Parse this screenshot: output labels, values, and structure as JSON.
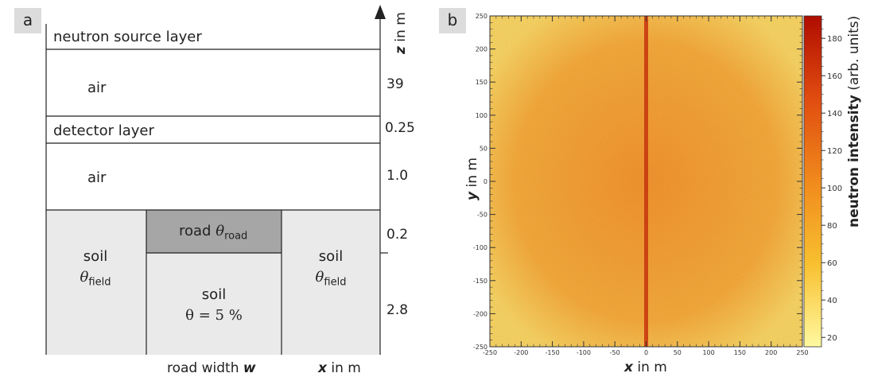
{
  "panel_a": {
    "tag": "a",
    "axis": {
      "var": "z",
      "unit": "in m"
    },
    "layers": {
      "source": "neutron source layer",
      "air_upper": "air",
      "detector": "detector layer",
      "air_lower": "air"
    },
    "thickness": {
      "air_upper": "39",
      "detector": "0.25",
      "air_lower": "1.0",
      "road": "0.2",
      "soil": "2.8"
    },
    "road": {
      "word": "road",
      "theta": "θ",
      "sub": "road"
    },
    "soil_left": {
      "word": "soil",
      "theta": "θ",
      "sub": "field"
    },
    "soil_right": {
      "word": "soil",
      "theta": "θ",
      "sub": "field"
    },
    "soil_center": {
      "word": "soil",
      "eq": "θ = 5 %"
    },
    "bottom": {
      "road_width_text": "road width",
      "road_width_var": "w",
      "x_var": "x",
      "x_unit": "in m"
    }
  },
  "panel_b": {
    "tag": "b",
    "colors": {
      "low": "#fff17a",
      "mid": "#f0a020",
      "high": "#c01000",
      "line": "#c83a10"
    }
  },
  "chart_data": {
    "type": "heatmap",
    "xlabel_var": "x",
    "xlabel_unit": "in m",
    "ylabel_var": "y",
    "ylabel_unit": "in m",
    "colorbar_label_bold": "neutron intensity",
    "colorbar_label_unit": "(arb. units)",
    "xlim": [
      -250,
      250
    ],
    "ylim": [
      -250,
      250
    ],
    "xticks": [
      -250,
      -200,
      -150,
      -100,
      -50,
      0,
      50,
      100,
      150,
      200,
      250
    ],
    "yticks": [
      -250,
      -200,
      -150,
      -100,
      -50,
      0,
      50,
      100,
      150,
      200,
      250
    ],
    "colorbar_range": [
      15,
      192
    ],
    "colorbar_ticks": [
      20,
      40,
      60,
      80,
      100,
      120,
      140,
      160,
      180
    ],
    "background_intensity": 75,
    "road_line": {
      "x": 0,
      "intensity": 150
    }
  }
}
